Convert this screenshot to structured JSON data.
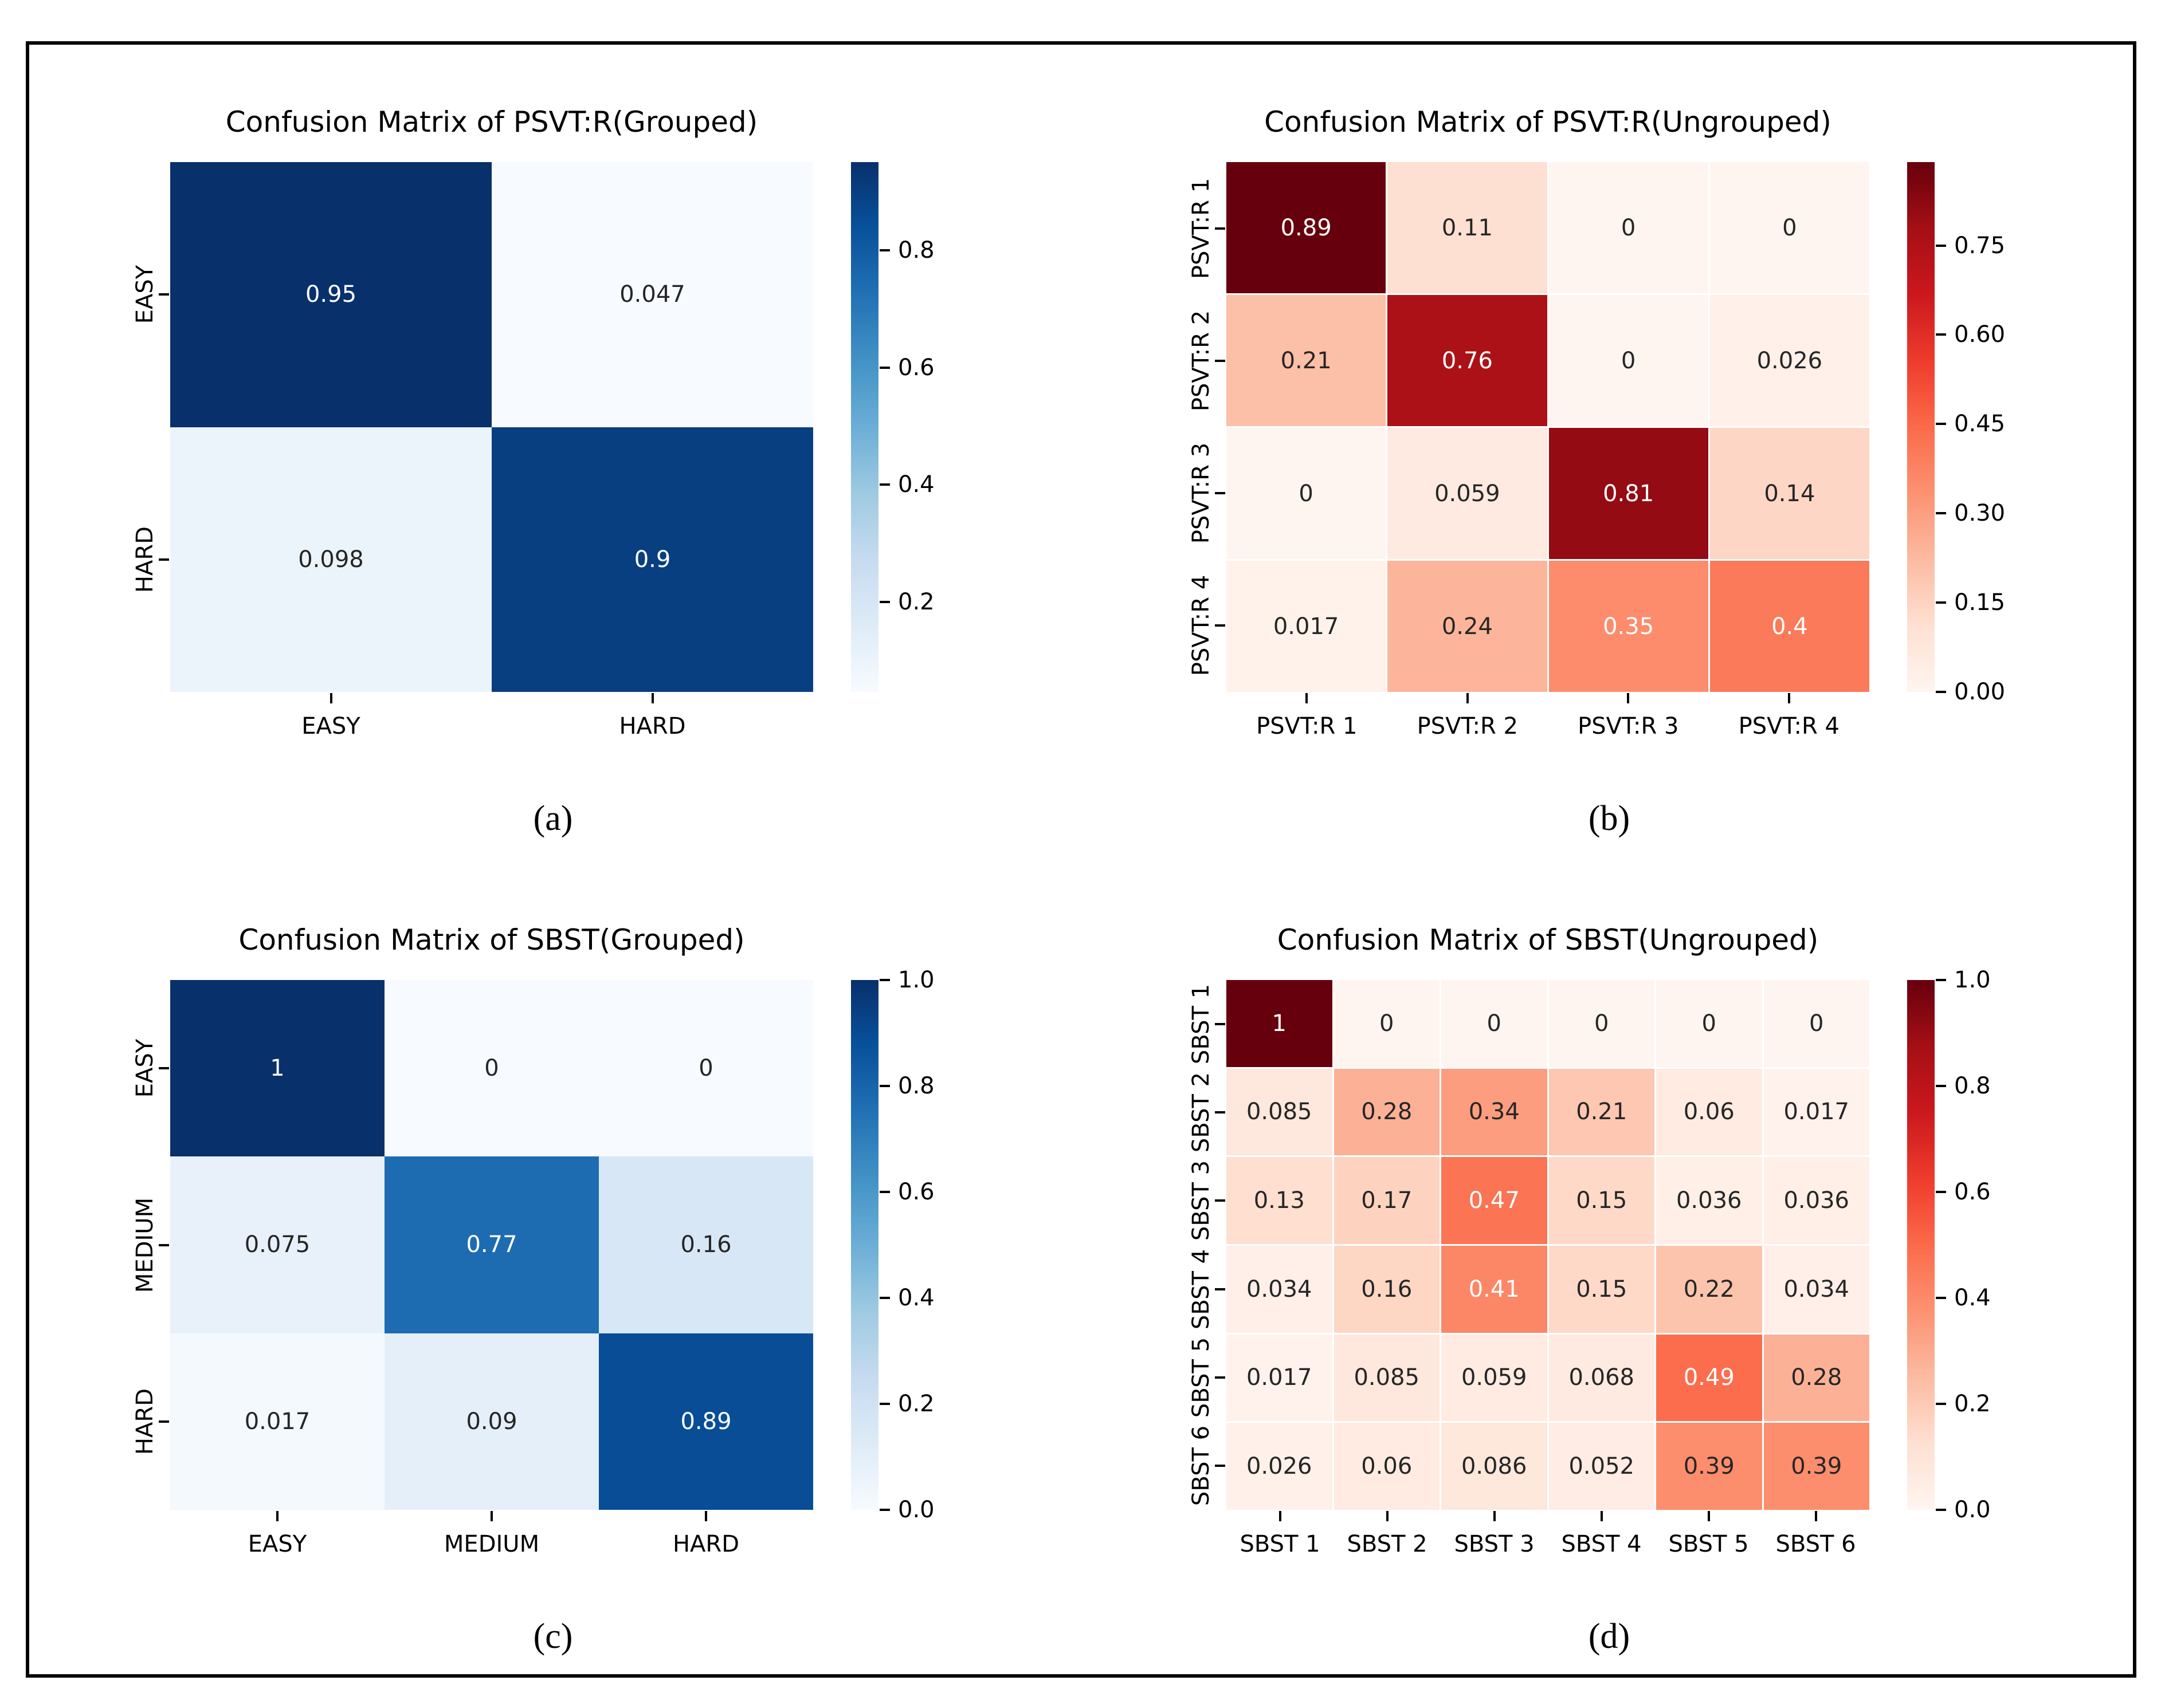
{
  "figure": {
    "background": "#ffffff",
    "frame_color": "#000000"
  },
  "colors": {
    "annotation_dark": "#262626",
    "annotation_light": "#ffffff",
    "tick_color": "#000000",
    "colormaps": {
      "Blues": [
        "#f7fbff",
        "#deebf7",
        "#c6dbef",
        "#9ecae1",
        "#6baed6",
        "#4292c6",
        "#2171b5",
        "#08519c",
        "#08306b"
      ],
      "Reds": [
        "#fff5f0",
        "#fee0d2",
        "#fcbba1",
        "#fc9272",
        "#fb6a4a",
        "#ef3b2c",
        "#cb181d",
        "#a50f15",
        "#67000d"
      ]
    }
  },
  "chart_data": [
    {
      "type": "heatmap",
      "title": "Confusion Matrix of PSVT:R(Grouped)",
      "caption": "(a)",
      "colormap": "Blues",
      "vmin": 0.047,
      "vmax": 0.95,
      "cell_gap": 0,
      "row_labels": [
        "EASY",
        "HARD"
      ],
      "col_labels": [
        "EASY",
        "HARD"
      ],
      "values": [
        [
          0.95,
          0.047
        ],
        [
          0.098,
          0.9
        ]
      ],
      "annotations": [
        [
          "0.95",
          "0.047"
        ],
        [
          "0.098",
          "0.9"
        ]
      ],
      "colorbar_ticks": [
        {
          "label": "0.8",
          "value": 0.8
        },
        {
          "label": "0.6",
          "value": 0.6
        },
        {
          "label": "0.4",
          "value": 0.4
        },
        {
          "label": "0.2",
          "value": 0.2
        }
      ]
    },
    {
      "type": "heatmap",
      "title": "Confusion Matrix of PSVT:R(Ungrouped)",
      "caption": "(b)",
      "colormap": "Reds",
      "vmin": 0.0,
      "vmax": 0.89,
      "cell_gap": 3,
      "row_labels": [
        "PSVT:R 1",
        "PSVT:R 2",
        "PSVT:R 3",
        "PSVT:R 4"
      ],
      "col_labels": [
        "PSVT:R 1",
        "PSVT:R 2",
        "PSVT:R 3",
        "PSVT:R 4"
      ],
      "values": [
        [
          0.89,
          0.11,
          0,
          0
        ],
        [
          0.21,
          0.76,
          0,
          0.026
        ],
        [
          0,
          0.059,
          0.81,
          0.14
        ],
        [
          0.017,
          0.24,
          0.35,
          0.4
        ]
      ],
      "annotations": [
        [
          "0.89",
          "0.11",
          "0",
          "0"
        ],
        [
          "0.21",
          "0.76",
          "0",
          "0.026"
        ],
        [
          "0",
          "0.059",
          "0.81",
          "0.14"
        ],
        [
          "0.017",
          "0.24",
          "0.35",
          "0.4"
        ]
      ],
      "colorbar_ticks": [
        {
          "label": "0.75",
          "value": 0.75
        },
        {
          "label": "0.60",
          "value": 0.6
        },
        {
          "label": "0.45",
          "value": 0.45
        },
        {
          "label": "0.30",
          "value": 0.3
        },
        {
          "label": "0.15",
          "value": 0.15
        },
        {
          "label": "0.00",
          "value": 0.0
        }
      ]
    },
    {
      "type": "heatmap",
      "title": "Confusion Matrix of SBST(Grouped)",
      "caption": "(c)",
      "colormap": "Blues",
      "vmin": 0.0,
      "vmax": 1.0,
      "cell_gap": 0,
      "row_labels": [
        "EASY",
        "MEDIUM",
        "HARD"
      ],
      "col_labels": [
        "EASY",
        "MEDIUM",
        "HARD"
      ],
      "values": [
        [
          1,
          0,
          0
        ],
        [
          0.075,
          0.77,
          0.16
        ],
        [
          0.017,
          0.09,
          0.89
        ]
      ],
      "annotations": [
        [
          "1",
          "0",
          "0"
        ],
        [
          "0.075",
          "0.77",
          "0.16"
        ],
        [
          "0.017",
          "0.09",
          "0.89"
        ]
      ],
      "colorbar_ticks": [
        {
          "label": "1.0",
          "value": 1.0
        },
        {
          "label": "0.8",
          "value": 0.8
        },
        {
          "label": "0.6",
          "value": 0.6
        },
        {
          "label": "0.4",
          "value": 0.4
        },
        {
          "label": "0.2",
          "value": 0.2
        },
        {
          "label": "0.0",
          "value": 0.0
        }
      ]
    },
    {
      "type": "heatmap",
      "title": "Confusion Matrix of SBST(Ungrouped)",
      "caption": "(d)",
      "colormap": "Reds",
      "vmin": 0.0,
      "vmax": 1.0,
      "cell_gap": 3,
      "row_labels": [
        "SBST 1",
        "SBST 2",
        "SBST 3",
        "SBST 4",
        "SBST 5",
        "SBST 6"
      ],
      "col_labels": [
        "SBST 1",
        "SBST 2",
        "SBST 3",
        "SBST 4",
        "SBST 5",
        "SBST 6"
      ],
      "values": [
        [
          1,
          0,
          0,
          0,
          0,
          0
        ],
        [
          0.085,
          0.28,
          0.34,
          0.21,
          0.06,
          0.017
        ],
        [
          0.13,
          0.17,
          0.47,
          0.15,
          0.036,
          0.036
        ],
        [
          0.034,
          0.16,
          0.41,
          0.15,
          0.22,
          0.034
        ],
        [
          0.017,
          0.085,
          0.059,
          0.068,
          0.49,
          0.28
        ],
        [
          0.026,
          0.06,
          0.086,
          0.052,
          0.39,
          0.39
        ]
      ],
      "annotations": [
        [
          "1",
          "0",
          "0",
          "0",
          "0",
          "0"
        ],
        [
          "0.085",
          "0.28",
          "0.34",
          "0.21",
          "0.06",
          "0.017"
        ],
        [
          "0.13",
          "0.17",
          "0.47",
          "0.15",
          "0.036",
          "0.036"
        ],
        [
          "0.034",
          "0.16",
          "0.41",
          "0.15",
          "0.22",
          "0.034"
        ],
        [
          "0.017",
          "0.085",
          "0.059",
          "0.068",
          "0.49",
          "0.28"
        ],
        [
          "0.026",
          "0.06",
          "0.086",
          "0.052",
          "0.39",
          "0.39"
        ]
      ],
      "colorbar_ticks": [
        {
          "label": "1.0",
          "value": 1.0
        },
        {
          "label": "0.8",
          "value": 0.8
        },
        {
          "label": "0.6",
          "value": 0.6
        },
        {
          "label": "0.4",
          "value": 0.4
        },
        {
          "label": "0.2",
          "value": 0.2
        },
        {
          "label": "0.0",
          "value": 0.0
        }
      ]
    }
  ]
}
